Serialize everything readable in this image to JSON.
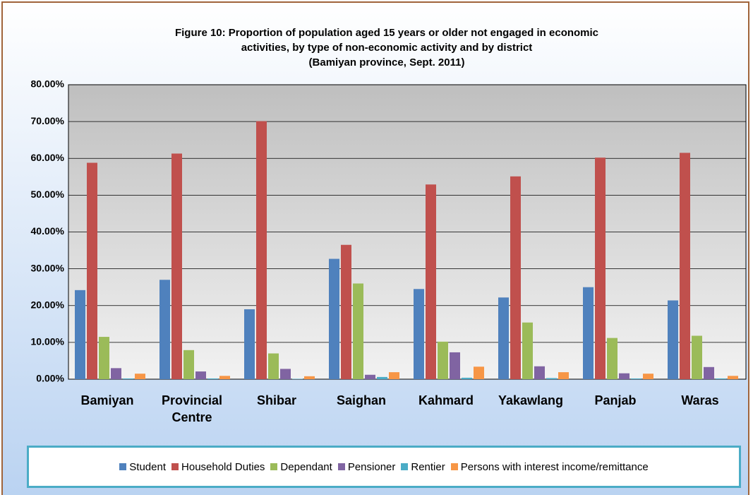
{
  "chart_data": {
    "type": "bar",
    "title": [
      "Figure 10: Proportion of population aged 15 years or older not engaged in economic",
      "activities, by type of non-economic activity and by district",
      "(Bamiyan province, Sept. 2011)"
    ],
    "categories": [
      "Bamiyan",
      "Provincial Centre",
      "Shibar",
      "Saighan",
      "Kahmard",
      "Yakawlang",
      "Panjab",
      "Waras"
    ],
    "series": [
      {
        "name": "Student",
        "color": "#4f81bd",
        "values": [
          24.2,
          27.0,
          19.0,
          32.7,
          24.5,
          22.2,
          25.0,
          21.4
        ]
      },
      {
        "name": "Household Duties",
        "color": "#c0504d",
        "values": [
          58.8,
          61.3,
          70.1,
          36.5,
          52.9,
          55.1,
          60.2,
          61.5
        ]
      },
      {
        "name": "Dependant",
        "color": "#9bbb59",
        "values": [
          11.5,
          7.9,
          7.0,
          26.0,
          10.2,
          15.4,
          11.2,
          11.8
        ]
      },
      {
        "name": "Pensioner",
        "color": "#8064a2",
        "values": [
          3.0,
          2.1,
          2.8,
          1.2,
          7.3,
          3.5,
          1.6,
          3.3
        ]
      },
      {
        "name": "Rentier",
        "color": "#4bacc6",
        "values": [
          0.2,
          0.2,
          0.1,
          0.6,
          0.4,
          0.3,
          0.2,
          0.2
        ]
      },
      {
        "name": "Persons with interest income/remittance",
        "color": "#f79646",
        "values": [
          1.5,
          0.9,
          0.8,
          1.9,
          3.4,
          1.9,
          1.5,
          0.9
        ]
      }
    ],
    "ylim": [
      0,
      80
    ],
    "yticks": [
      {
        "value": 0,
        "label": "0.00%"
      },
      {
        "value": 10,
        "label": "10.00%"
      },
      {
        "value": 20,
        "label": "20.00%"
      },
      {
        "value": 30,
        "label": "30.00%"
      },
      {
        "value": 40,
        "label": "40.00%"
      },
      {
        "value": 50,
        "label": "50.00%"
      },
      {
        "value": 60,
        "label": "60.00%"
      },
      {
        "value": 70,
        "label": "70.00%"
      },
      {
        "value": 80,
        "label": "80.00%"
      }
    ],
    "grid": true
  }
}
